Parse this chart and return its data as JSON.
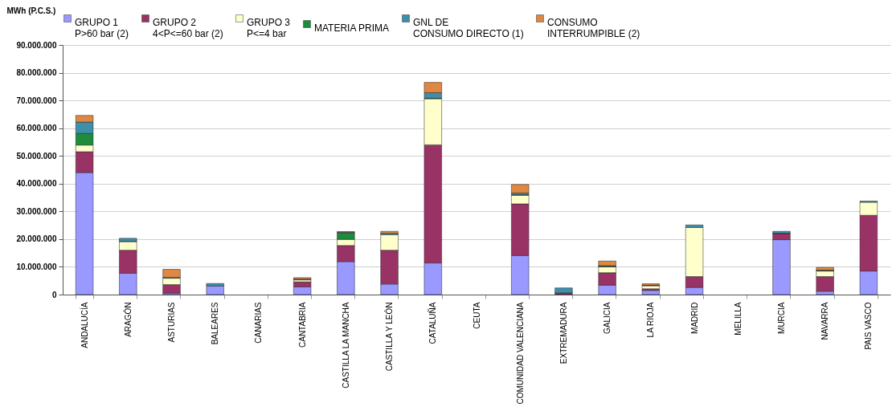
{
  "chart_data": {
    "type": "bar",
    "stacked": true,
    "ylabel": "MWh (P.C.S.)",
    "legend": "top",
    "grid": "y",
    "categories": [
      "ANDALUCÍA",
      "ARAGÓN",
      "ASTURIAS",
      "BALEARES",
      "CANARIAS",
      "CANTABRIA",
      "CASTILLA LA MANCHA",
      "CASTILLA Y LEÓN",
      "CATALUÑA",
      "CEUTA",
      "COMUNIDAD VALENCIANA",
      "EXTREMADURA",
      "GALICIA",
      "LA RIOJA",
      "MADRID",
      "MELILLA",
      "MURCIA",
      "NAVARRA",
      "PAIS VASCO"
    ],
    "ylim": [
      0,
      90000000
    ],
    "yticks": [
      {
        "value": 0,
        "label": "0"
      },
      {
        "value": 10000000,
        "label": "10.000.000"
      },
      {
        "value": 20000000,
        "label": "20.000.000"
      },
      {
        "value": 30000000,
        "label": "30.000.000"
      },
      {
        "value": 40000000,
        "label": "40.000.000"
      },
      {
        "value": 50000000,
        "label": "50.000.000"
      },
      {
        "value": 60000000,
        "label": "60.000.000"
      },
      {
        "value": 70000000,
        "label": "70.000.000"
      },
      {
        "value": 80000000,
        "label": "80.000.000"
      },
      {
        "value": 90000000,
        "label": "90.000.000"
      }
    ],
    "series": [
      {
        "name": "GRUPO 1\nP>60 bar (2)",
        "color": "#9999ff",
        "values": [
          44000000,
          7700000,
          500000,
          3100000,
          0,
          2800000,
          11900000,
          3800000,
          11400000,
          0,
          14100000,
          null,
          3400000,
          1500000,
          2600000,
          0,
          19800000,
          1200000,
          8500000
        ]
      },
      {
        "name": "GRUPO 2\n4<P<=60 bar (2)",
        "color": "#993366",
        "values": [
          7500000,
          8300000,
          3100000,
          0,
          0,
          1800000,
          5800000,
          12200000,
          42600000,
          0,
          18600000,
          600000,
          4500000,
          600000,
          3900000,
          0,
          2200000,
          5300000,
          20100000
        ]
      },
      {
        "name": "GRUPO 3\nP<=4 bar",
        "color": "#ffffcc",
        "values": [
          2400000,
          3100000,
          2300000,
          0,
          0,
          700000,
          2200000,
          5600000,
          16600000,
          0,
          3100000,
          null,
          2100000,
          1100000,
          17700000,
          0,
          null,
          2000000,
          4700000
        ]
      },
      {
        "name": "MATERIA PRIMA",
        "color": "#1e8c3c",
        "values": [
          4200000,
          100000,
          null,
          0,
          0,
          null,
          2300000,
          null,
          200000,
          0,
          200000,
          0,
          200000,
          100000,
          0,
          0,
          100000,
          200000,
          0
        ]
      },
      {
        "name": "GNL DE\nCONSUMO DIRECTO (1)",
        "color": "#3f8fab",
        "values": [
          4100000,
          1100000,
          300000,
          900000,
          0,
          300000,
          300000,
          500000,
          2000000,
          0,
          600000,
          1800000,
          200000,
          100000,
          900000,
          0,
          700000,
          100000,
          400000
        ]
      },
      {
        "name": "CONSUMO\nINTERRUMPIBLE (2)",
        "color": "#de8844",
        "values": [
          2400000,
          0,
          2900000,
          0,
          0,
          500000,
          200000,
          700000,
          3700000,
          0,
          3100000,
          0,
          1700000,
          500000,
          0,
          0,
          0,
          1000000,
          0
        ]
      }
    ]
  }
}
